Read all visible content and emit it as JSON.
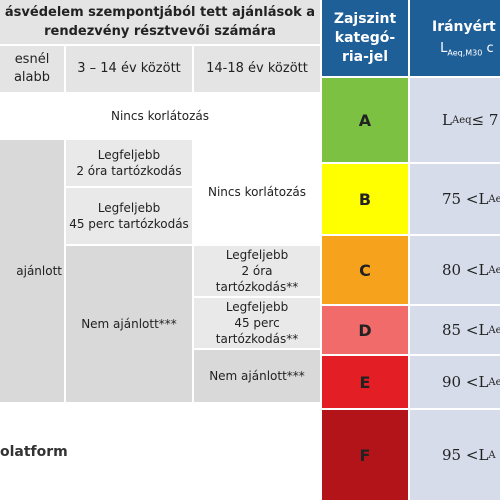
{
  "table": {
    "title_line1": "ásvédelem szempontjából tett ajánlások a",
    "title_line2": "rendezvény résztvevői számára",
    "col1_line1": "esnél",
    "col1_line2": "alabb",
    "col2": "3 – 14 év között",
    "col3": "14-18 év között",
    "row_a": "Nincs korlátozás",
    "b_c2_line1": "Legfeljebb",
    "b_c2_line2": "2 óra tartózkodás",
    "c_c2_line1": "Legfeljebb",
    "c_c2_line2": "45 perc tartózkodás",
    "bc_c3": "Nincs korlátozás",
    "col1_merged": "ajánlott",
    "de_c2": "Nem ajánlott***",
    "d_c3_line1": "Legfeljebb",
    "d_c3_line2": "2 óra",
    "d_c3_line3": "tartózkodás**",
    "e_c3_line1": "Legfeljebb",
    "e_c3_line2": "45 perc",
    "e_c3_line3": "tartózkodás**",
    "f_c3": "Nem ajánlott***"
  },
  "footer": {
    "platform_text": "olatform"
  },
  "legend": {
    "header_cat_line1": "Zajszint",
    "header_cat_line2": "kategó-",
    "header_cat_line3": "ria-jel",
    "header_guide": "Irányért",
    "header_guide_sub_main": "L",
    "header_guide_sub": "Aeq,M30",
    "header_guide_tail": "c",
    "categories": [
      {
        "letter": "A",
        "color": "#7dc143",
        "pre": "",
        "sym": "L",
        "sub": "Aeq",
        "rel": " ≤ 7"
      },
      {
        "letter": "B",
        "color": "#ffff00",
        "pre": "75 < ",
        "sym": "L",
        "sub": "Aeq",
        "rel": ""
      },
      {
        "letter": "C",
        "color": "#f7a21c",
        "pre": "80 < ",
        "sym": "L",
        "sub": "Aeq",
        "rel": ""
      },
      {
        "letter": "D",
        "color": "#f26b6b",
        "pre": "85 < ",
        "sym": "L",
        "sub": "Aeq",
        "rel": ""
      },
      {
        "letter": "E",
        "color": "#e31e24",
        "pre": "90 < ",
        "sym": "L",
        "sub": "Aeq",
        "rel": ""
      },
      {
        "letter": "F",
        "color": "#b3141a",
        "pre": "95 < ",
        "sym": "L",
        "sub": "A",
        "rel": ""
      }
    ]
  }
}
